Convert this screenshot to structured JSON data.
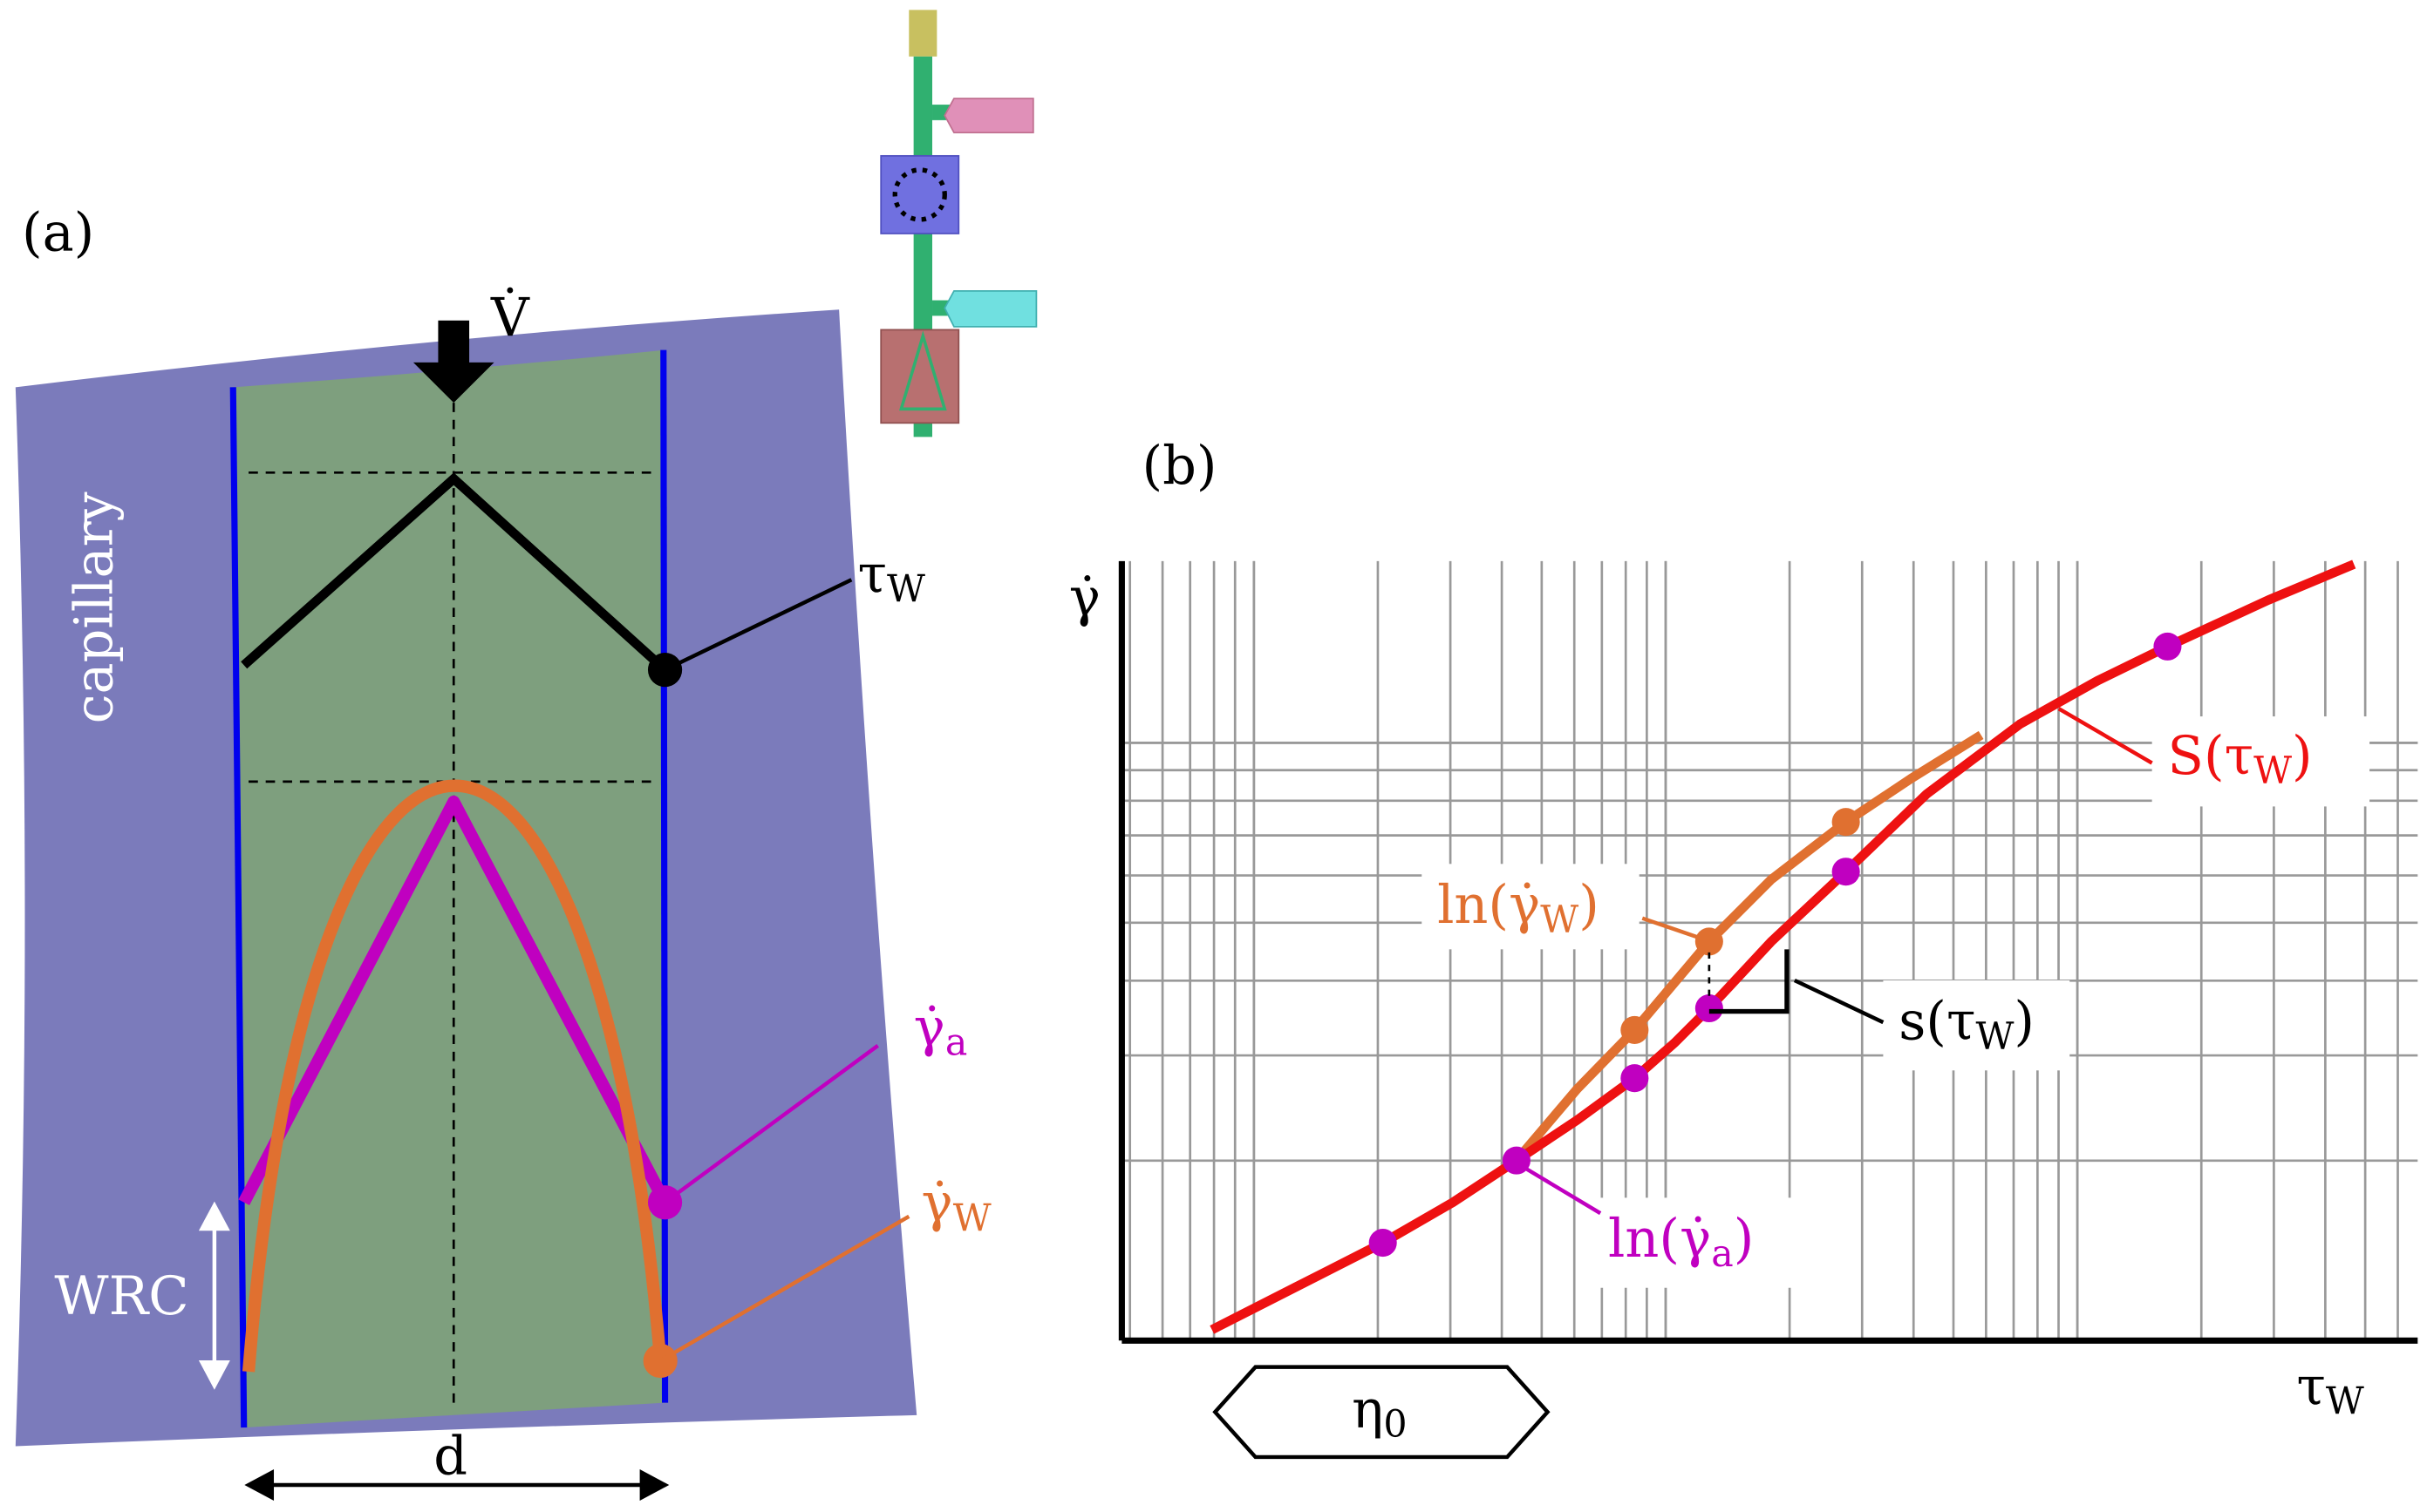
{
  "panel_a": {
    "label": "(a)",
    "flow": "V̇",
    "capillary": "capillary",
    "tau_w": {
      "main": "τ",
      "sub": "W"
    },
    "gamma_a": {
      "main": "γ̇",
      "sub": "a"
    },
    "gamma_w": {
      "main": "γ̇",
      "sub": "W"
    },
    "wrc": "WRC",
    "d": "d"
  },
  "panel_b": {
    "label": "(b)",
    "y_axis": "γ̇",
    "x_axis": {
      "main": "τ",
      "sub": "W"
    },
    "ln_gamma_w": {
      "pre": "ln(",
      "main": "γ̇",
      "sub": "W",
      "post": ")"
    },
    "ln_gamma_a": {
      "pre": "ln(",
      "main": "γ̇",
      "sub": "a",
      "post": ")"
    },
    "big_s": {
      "pre": "S(",
      "main": "τ",
      "sub": "W",
      "post": ")"
    },
    "small_s": {
      "pre": "s(",
      "main": "τ",
      "sub": "W",
      "post": ")"
    },
    "eta0": {
      "main": "η",
      "sub": "0"
    }
  }
}
